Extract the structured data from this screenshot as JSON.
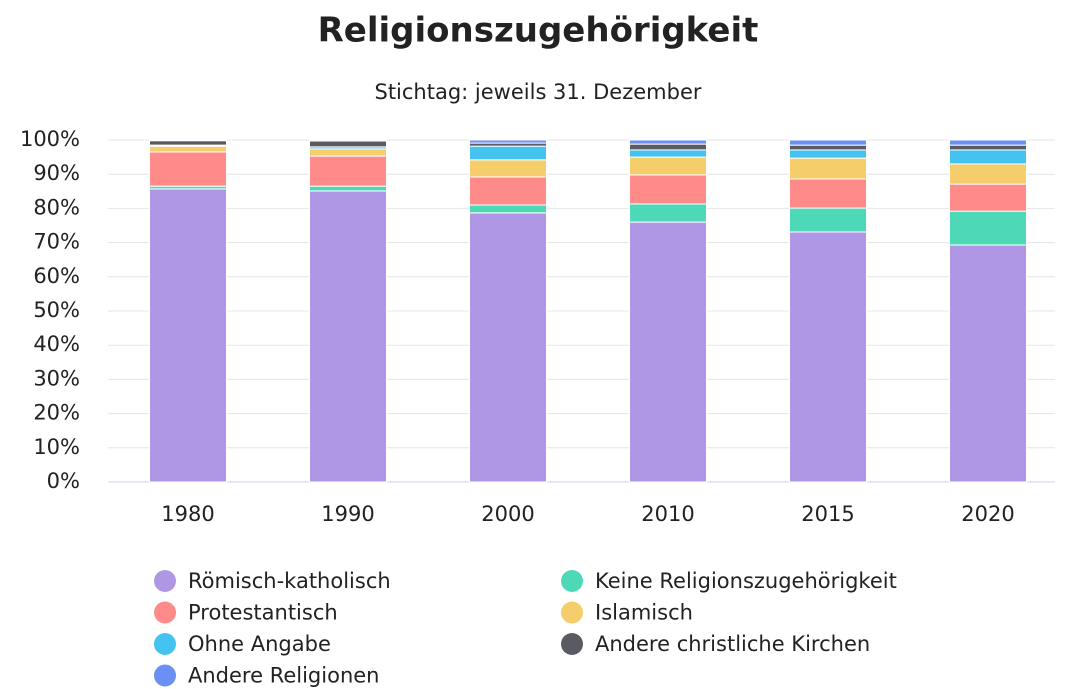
{
  "chart_data": {
    "type": "stacked_bar",
    "title": "Religionszugehörigkeit",
    "subtitle": "Stichtag: jeweils 31. Dezember",
    "categories": [
      "1980",
      "1990",
      "2000",
      "2010",
      "2015",
      "2020"
    ],
    "series": [
      {
        "name": "Römisch-katholisch",
        "color": "#b097e6",
        "values": [
          85.7,
          85.1,
          78.7,
          76.0,
          73.1,
          69.3
        ]
      },
      {
        "name": "Keine Religionszugehörigkeit",
        "color": "#4dd9b8",
        "values": [
          0.8,
          1.4,
          2.3,
          5.3,
          7.0,
          9.9
        ]
      },
      {
        "name": "Protestantisch",
        "color": "#ff8a8a",
        "values": [
          10.0,
          8.8,
          8.2,
          8.5,
          8.5,
          7.9
        ]
      },
      {
        "name": "Islamisch",
        "color": "#f5cd6b",
        "values": [
          1.7,
          2.1,
          5.0,
          5.2,
          6.1,
          5.9
        ]
      },
      {
        "name": "Ohne Angabe",
        "color": "#45c3f0",
        "values": [
          0.3,
          0.6,
          4.0,
          2.1,
          2.4,
          4.1
        ]
      },
      {
        "name": "Andere christliche Kirchen",
        "color": "#5a5a62",
        "values": [
          1.3,
          1.7,
          0.9,
          1.7,
          1.4,
          1.4
        ]
      },
      {
        "name": "Andere Religionen",
        "color": "#6a8ff5",
        "values": [
          0.2,
          0.3,
          0.9,
          1.2,
          1.5,
          1.5
        ]
      }
    ],
    "ylim": [
      0,
      100
    ],
    "yticks": [
      {
        "value": 0,
        "label": "0%"
      },
      {
        "value": 10,
        "label": "10%"
      },
      {
        "value": 20,
        "label": "20%"
      },
      {
        "value": 30,
        "label": "30%"
      },
      {
        "value": 40,
        "label": "40%"
      },
      {
        "value": 50,
        "label": "50%"
      },
      {
        "value": 60,
        "label": "60%"
      },
      {
        "value": 70,
        "label": "70%"
      },
      {
        "value": 80,
        "label": "80%"
      },
      {
        "value": 90,
        "label": "90%"
      },
      {
        "value": 100,
        "label": "100%"
      }
    ],
    "grid": true,
    "legend": "bottom"
  }
}
